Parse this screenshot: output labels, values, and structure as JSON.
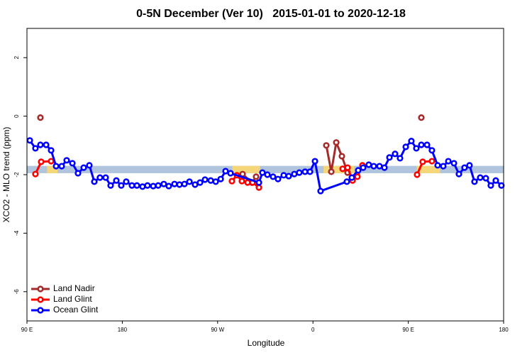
{
  "chart_data": {
    "type": "line",
    "title": "0-5N December (Ver 10)   2015-01-01 to 2020-12-18",
    "xlabel": "Longitude",
    "ylabel": "XCO2 - MLO trend (ppm)",
    "xlim": [
      90,
      540
    ],
    "ylim": [
      -7,
      3
    ],
    "xticks": [
      {
        "value": 90,
        "label": "90 E"
      },
      180,
      {
        "value": 270,
        "label": "90 W"
      },
      {
        "value": 360,
        "label": "0"
      },
      {
        "value": 450,
        "label": "90 E"
      },
      {
        "value": 540,
        "label": "180"
      }
    ],
    "yticks": [
      2,
      0,
      -2,
      -4,
      -6
    ],
    "legend": "bottom-left",
    "band": {
      "ylim": [
        -1.95,
        -1.7
      ],
      "color": "#b0c4de",
      "highlight_color": "#f5d77a",
      "highlights": [
        [
          109,
          119
        ],
        [
          284,
          310
        ],
        [
          370,
          399
        ],
        [
          458,
          480
        ]
      ]
    },
    "series": [
      {
        "name": "Land Nadir",
        "color": "#a52a2a",
        "x": [
          102.7,
          null,
          293.6,
          302.3,
          306.3,
          null,
          372.6,
          377.3,
          382,
          387.3,
          392.7,
          null,
          462.3
        ],
        "values": [
          -0.05,
          null,
          -1.98,
          -2.27,
          -2.07,
          null,
          -1.0,
          -1.9,
          -0.9,
          -1.37,
          -1.93,
          null,
          -0.05
        ]
      },
      {
        "name": "Land Glint",
        "color": "#ff0000",
        "x": [
          98,
          103.4,
          112.8,
          null,
          283.5,
          288.2,
          292.9,
          298.3,
          303,
          309,
          null,
          388,
          392.7,
          397.4,
          402,
          406.7,
          null,
          458.3,
          463.6,
          472.3
        ],
        "values": [
          -1.98,
          -1.56,
          -1.54,
          null,
          -2.22,
          -2.02,
          -2.22,
          -2.27,
          -2.27,
          -2.44,
          null,
          -1.8,
          -1.76,
          -2.2,
          -2.07,
          -1.68,
          null,
          -2.0,
          -1.56,
          -1.54
        ]
      },
      {
        "name": "Ocean Glint",
        "color": "#0000ff",
        "x": [
          92.7,
          98,
          102.7,
          108.1,
          112.8,
          117.5,
          122.8,
          127.5,
          132.9,
          138.2,
          143.6,
          148.9,
          153.6,
          158.9,
          164.3,
          169,
          174.4,
          179,
          183.7,
          189.1,
          193.8,
          199.1,
          203.8,
          209.2,
          213.9,
          219.2,
          223.9,
          229.3,
          234,
          238.7,
          243.4,
          248.7,
          253.4,
          258.1,
          263.5,
          268.2,
          272.9,
          277.5,
          282.2,
          309,
          312.3,
          317,
          322.3,
          327,
          332.4,
          337.1,
          342.4,
          347.1,
          352.5,
          357.2,
          361.9,
          367.2,
          392,
          396.7,
          402.7,
          407.4,
          412.7,
          417.4,
          422.8,
          427.5,
          432.2,
          437.5,
          442.2,
          447.6,
          452.9,
          457.6,
          462.3,
          467.7,
          472.3,
          477.7,
          483,
          487.8,
          493.1,
          497.8,
          503.1,
          507.8,
          512.5,
          517.9,
          523.2,
          527.9,
          532.6,
          537.9
        ],
        "values": [
          -0.83,
          -1.1,
          -0.98,
          -0.98,
          -1.17,
          -1.71,
          -1.71,
          -1.51,
          -1.61,
          -1.95,
          -1.76,
          -1.68,
          -2.24,
          -2.1,
          -2.1,
          -2.37,
          -2.2,
          -2.37,
          -2.24,
          -2.37,
          -2.37,
          -2.41,
          -2.37,
          -2.39,
          -2.37,
          -2.32,
          -2.39,
          -2.32,
          -2.34,
          -2.32,
          -2.24,
          -2.34,
          -2.27,
          -2.17,
          -2.2,
          -2.24,
          -2.15,
          -1.88,
          -1.95,
          -2.27,
          -1.93,
          -2.0,
          -2.07,
          -2.15,
          -2.02,
          -2.05,
          -1.98,
          -1.93,
          -1.9,
          -1.9,
          -1.54,
          -2.56,
          -2.24,
          -2.1,
          -1.85,
          -1.76,
          -1.66,
          -1.71,
          -1.71,
          -1.76,
          -1.41,
          -1.29,
          -1.44,
          -1.05,
          -0.85,
          -1.1,
          -0.98,
          -0.98,
          -1.17,
          -1.68,
          -1.71,
          -1.54,
          -1.61,
          -1.98,
          -1.76,
          -1.68,
          -2.24,
          -2.1,
          -2.12,
          -2.37,
          -2.2,
          -2.37
        ]
      }
    ]
  }
}
